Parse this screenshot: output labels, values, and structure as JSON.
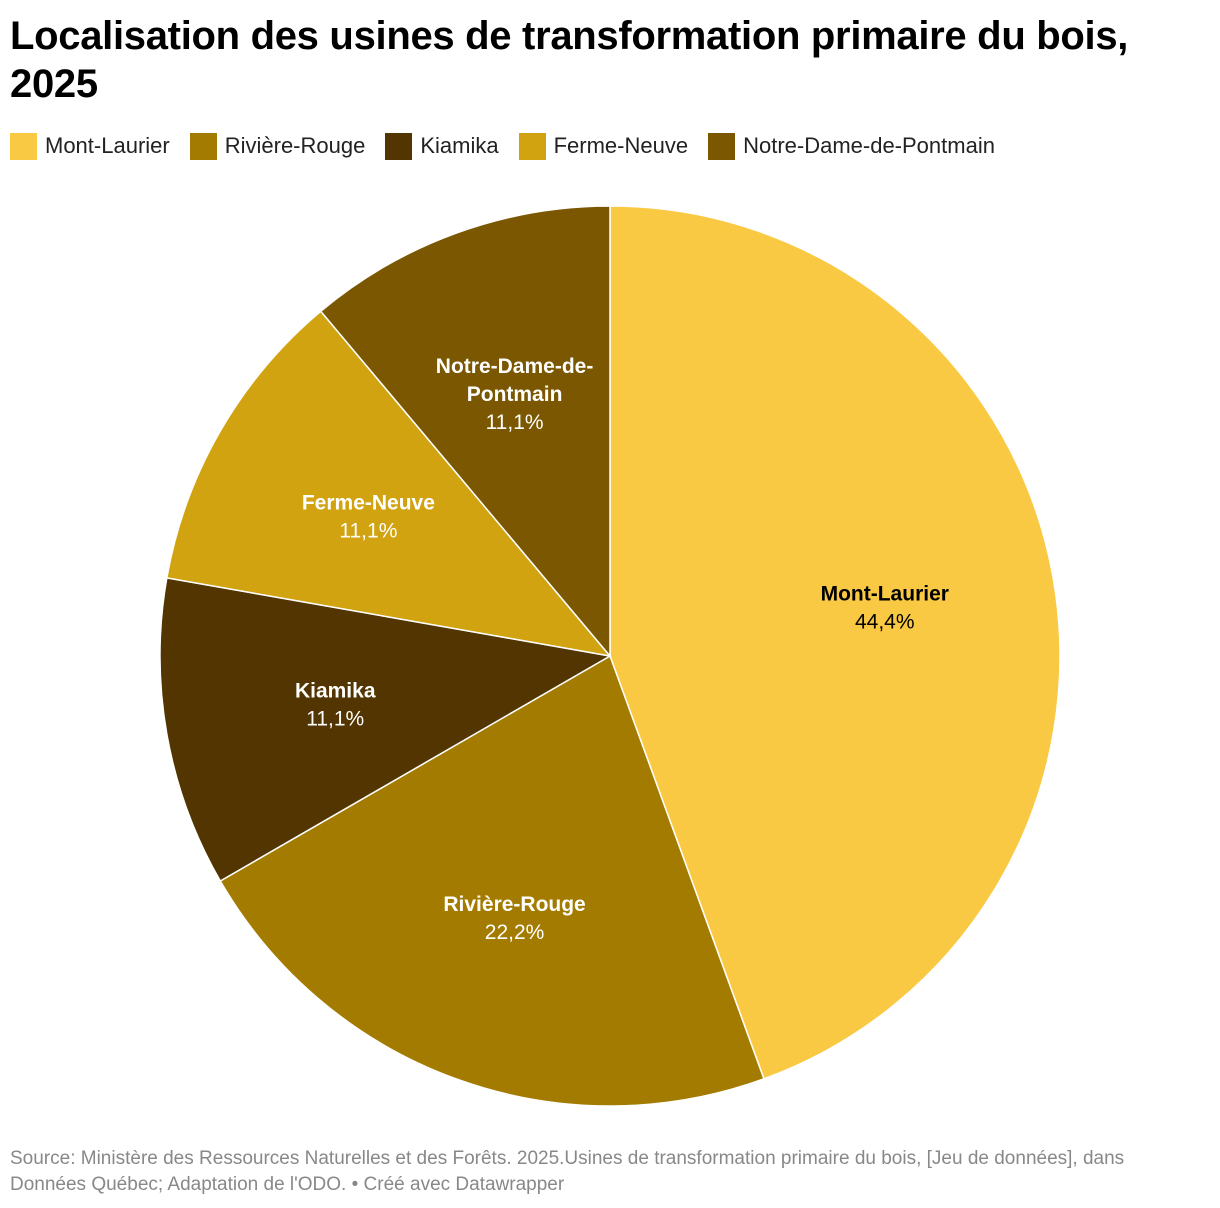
{
  "title": "Localisation des usines de transformation primaire du bois, 2025",
  "source": "Source: Ministère des Ressources Naturelles et des Forêts. 2025.Usines de transformation primaire du bois, [Jeu de données], dans Données Québec; Adaptation de l'ODO. • Créé avec Datawrapper",
  "chart_data": {
    "type": "pie",
    "title": "Localisation des usines de transformation primaire du bois, 2025",
    "legend_position": "top",
    "slices": [
      {
        "label": "Mont-Laurier",
        "value": 44.4,
        "value_label": "44,4%",
        "color": "#fac943",
        "label_color": "#000000"
      },
      {
        "label": "Rivière-Rouge",
        "value": 22.2,
        "value_label": "22,2%",
        "color": "#a37b00",
        "label_color": "#ffffff"
      },
      {
        "label": "Kiamika",
        "value": 11.1,
        "value_label": "11,1%",
        "color": "#523500",
        "label_color": "#ffffff"
      },
      {
        "label": "Ferme-Neuve",
        "value": 11.1,
        "value_label": "11,1%",
        "color": "#d1a311",
        "label_color": "#ffffff"
      },
      {
        "label": "Notre-Dame-de-Pontmain",
        "value": 11.1,
        "value_label": "11,1%",
        "color": "#7a5700",
        "label_color": "#ffffff",
        "label_lines": [
          "Notre-Dame-de-",
          "Pontmain"
        ]
      }
    ]
  }
}
